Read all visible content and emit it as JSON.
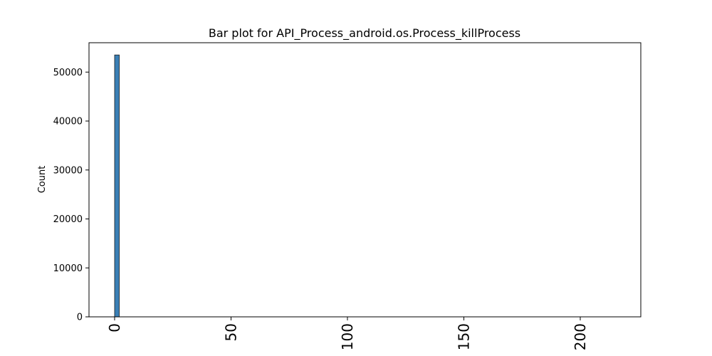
{
  "chart_data": {
    "type": "bar",
    "title": "Bar plot for API_Process_android.os.Process_killProcess",
    "xlabel": "",
    "ylabel": "Count",
    "xlim": [
      -11,
      226
    ],
    "ylim": [
      0,
      56000
    ],
    "x_ticks": [
      0,
      50,
      100,
      150,
      200
    ],
    "y_ticks": [
      0,
      10000,
      20000,
      30000,
      40000,
      50000
    ],
    "bars": [
      {
        "x_start": 0,
        "x_end": 2,
        "value": 53500
      }
    ],
    "bar_color": "#3a7fb5",
    "bar_edge_color": "#1a1a1a",
    "grid": false,
    "legend": "none"
  }
}
